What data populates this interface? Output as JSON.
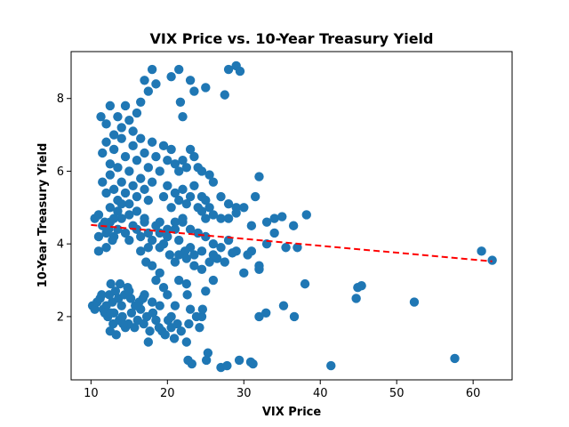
{
  "chart_data": {
    "type": "scatter",
    "title": "VIX Price vs. 10-Year Treasury Yield",
    "xlabel": "VIX Price",
    "ylabel": "10-Year Treasury Yield",
    "xlim": [
      7.4,
      65.1
    ],
    "ylim": [
      0.26,
      9.29
    ],
    "xticks": [
      10,
      20,
      30,
      40,
      50,
      60
    ],
    "yticks": [
      2,
      4,
      6,
      8
    ],
    "grid": false,
    "point_color": "#1f77b4",
    "trend_color": "#ff0000",
    "trendline": {
      "style": "dashed",
      "x": [
        10,
        62.5
      ],
      "y": [
        4.52,
        3.52
      ]
    },
    "series": [
      {
        "values": [
          [
            10.2,
            2.3
          ],
          [
            10.5,
            2.2
          ],
          [
            10.8,
            2.4
          ],
          [
            11.2,
            2.5
          ],
          [
            11.6,
            2.2
          ],
          [
            12.0,
            2.3
          ],
          [
            12.4,
            2.6
          ],
          [
            12.8,
            2.4
          ],
          [
            13.2,
            2.7
          ],
          [
            13.6,
            2.5
          ],
          [
            14.0,
            2.3
          ],
          [
            14.4,
            2.6
          ],
          [
            14.8,
            2.8
          ],
          [
            15.2,
            2.5
          ],
          [
            11.4,
            2.6
          ],
          [
            12.6,
            2.9
          ],
          [
            13.0,
            2.1
          ],
          [
            13.8,
            2.9
          ],
          [
            15.0,
            2.7
          ],
          [
            12.2,
            2.0
          ],
          [
            12.5,
            1.6
          ],
          [
            12.9,
            1.8
          ],
          [
            13.3,
            1.5
          ],
          [
            13.7,
            1.9
          ],
          [
            14.1,
            2.0
          ],
          [
            14.5,
            1.7
          ],
          [
            14.9,
            1.8
          ],
          [
            15.3,
            2.1
          ],
          [
            15.7,
            1.7
          ],
          [
            16.1,
            1.9
          ],
          [
            16.5,
            2.2
          ],
          [
            16.9,
            1.8
          ],
          [
            17.3,
            2.0
          ],
          [
            17.7,
            1.6
          ],
          [
            18.1,
            2.1
          ],
          [
            18.5,
            1.9
          ],
          [
            18.9,
            1.7
          ],
          [
            19.3,
            1.6
          ],
          [
            19.7,
            1.5
          ],
          [
            20.1,
            1.9
          ],
          [
            20.5,
            1.7
          ],
          [
            20.9,
            1.4
          ],
          [
            21.3,
            1.8
          ],
          [
            17.5,
            1.3
          ],
          [
            22.5,
            1.3
          ],
          [
            22.7,
            0.8
          ],
          [
            23.2,
            0.7
          ],
          [
            24.5,
            2.0
          ],
          [
            25.3,
            1.0
          ],
          [
            25.1,
            0.8
          ],
          [
            27.0,
            0.6
          ],
          [
            27.8,
            0.65
          ],
          [
            29.4,
            0.8
          ],
          [
            30.9,
            0.75
          ],
          [
            31.2,
            0.7
          ],
          [
            41.4,
            0.65
          ],
          [
            57.6,
            0.85
          ],
          [
            24.6,
            2.2
          ],
          [
            26.0,
            3.0
          ],
          [
            25.0,
            2.7
          ],
          [
            23.0,
            2.2
          ],
          [
            22.6,
            2.6
          ],
          [
            22.5,
            2.9
          ],
          [
            32.0,
            2.0
          ],
          [
            32.9,
            2.1
          ],
          [
            35.2,
            2.3
          ],
          [
            36.6,
            2.0
          ],
          [
            38.0,
            2.9
          ],
          [
            44.7,
            2.5
          ],
          [
            44.9,
            2.8
          ],
          [
            45.4,
            2.85
          ],
          [
            52.3,
            2.4
          ],
          [
            11.0,
            4.2
          ],
          [
            11.5,
            4.5
          ],
          [
            12.0,
            4.3
          ],
          [
            12.5,
            4.6
          ],
          [
            13.0,
            4.2
          ],
          [
            13.5,
            4.4
          ],
          [
            14.0,
            4.7
          ],
          [
            14.5,
            4.3
          ],
          [
            15.0,
            4.1
          ],
          [
            15.5,
            4.5
          ],
          [
            16.0,
            4.4
          ],
          [
            16.5,
            4.2
          ],
          [
            17.0,
            4.6
          ],
          [
            17.5,
            4.3
          ],
          [
            18.0,
            4.1
          ],
          [
            18.5,
            4.5
          ],
          [
            19.0,
            4.3
          ],
          [
            19.5,
            4.0
          ],
          [
            20.0,
            4.2
          ],
          [
            21.0,
            4.4
          ],
          [
            21.5,
            4.1
          ],
          [
            22.0,
            4.6
          ],
          [
            23.0,
            3.9
          ],
          [
            24.0,
            4.3
          ],
          [
            25.0,
            4.2
          ],
          [
            26.0,
            4.0
          ],
          [
            27.0,
            3.9
          ],
          [
            28.0,
            4.1
          ],
          [
            29.0,
            3.8
          ],
          [
            30.5,
            3.7
          ],
          [
            31.0,
            3.8
          ],
          [
            32.0,
            3.4
          ],
          [
            33.0,
            4.6
          ],
          [
            34.0,
            4.7
          ],
          [
            35.0,
            4.75
          ],
          [
            36.5,
            4.5
          ],
          [
            38.2,
            4.8
          ],
          [
            34.0,
            4.3
          ],
          [
            37.0,
            3.9
          ],
          [
            61.1,
            3.8
          ],
          [
            62.5,
            3.55
          ],
          [
            17.2,
            3.5
          ],
          [
            18.0,
            3.4
          ],
          [
            19.0,
            3.2
          ],
          [
            20.3,
            3.7
          ],
          [
            21.0,
            3.5
          ],
          [
            22.3,
            3.8
          ],
          [
            23.5,
            3.4
          ],
          [
            24.5,
            3.3
          ],
          [
            25.5,
            3.5
          ],
          [
            26.5,
            3.6
          ],
          [
            27.5,
            3.5
          ],
          [
            30.0,
            3.2
          ],
          [
            32.0,
            3.3
          ],
          [
            18.5,
            3.0
          ],
          [
            19.5,
            2.8
          ],
          [
            21.5,
            3.0
          ],
          [
            20.0,
            2.6
          ],
          [
            11.3,
            7.5
          ],
          [
            12.0,
            7.3
          ],
          [
            12.5,
            7.8
          ],
          [
            13.0,
            7.0
          ],
          [
            13.5,
            7.5
          ],
          [
            14.0,
            7.2
          ],
          [
            14.5,
            7.8
          ],
          [
            15.0,
            7.4
          ],
          [
            15.5,
            7.1
          ],
          [
            16.0,
            7.6
          ],
          [
            16.5,
            7.9
          ],
          [
            17.0,
            8.5
          ],
          [
            17.5,
            8.2
          ],
          [
            18.0,
            8.8
          ],
          [
            18.5,
            8.4
          ],
          [
            20.5,
            8.6
          ],
          [
            21.5,
            8.8
          ],
          [
            23.0,
            8.5
          ],
          [
            23.5,
            8.2
          ],
          [
            25.0,
            8.3
          ],
          [
            27.5,
            8.1
          ],
          [
            28.0,
            8.8
          ],
          [
            29.0,
            8.9
          ],
          [
            29.5,
            8.75
          ],
          [
            21.7,
            7.9
          ],
          [
            22.0,
            7.5
          ],
          [
            11.5,
            6.5
          ],
          [
            12.0,
            6.8
          ],
          [
            12.5,
            6.2
          ],
          [
            13.0,
            6.6
          ],
          [
            13.5,
            6.1
          ],
          [
            14.0,
            6.9
          ],
          [
            14.5,
            6.4
          ],
          [
            15.0,
            6.0
          ],
          [
            15.5,
            6.7
          ],
          [
            16.0,
            6.3
          ],
          [
            16.5,
            6.9
          ],
          [
            17.0,
            6.5
          ],
          [
            17.5,
            6.1
          ],
          [
            18.0,
            6.8
          ],
          [
            18.5,
            6.4
          ],
          [
            19.0,
            6.0
          ],
          [
            19.5,
            6.7
          ],
          [
            20.0,
            6.3
          ],
          [
            20.5,
            6.6
          ],
          [
            21.0,
            6.2
          ],
          [
            21.5,
            6.0
          ],
          [
            22.0,
            6.3
          ],
          [
            22.5,
            6.1
          ],
          [
            23.0,
            6.6
          ],
          [
            23.5,
            6.4
          ],
          [
            24.0,
            6.1
          ],
          [
            24.5,
            6.0
          ],
          [
            25.5,
            5.9
          ],
          [
            11.5,
            5.7
          ],
          [
            12.0,
            5.4
          ],
          [
            12.5,
            5.9
          ],
          [
            13.0,
            5.5
          ],
          [
            13.5,
            5.2
          ],
          [
            14.0,
            5.7
          ],
          [
            14.5,
            5.4
          ],
          [
            15.0,
            5.1
          ],
          [
            15.5,
            5.6
          ],
          [
            16.0,
            5.3
          ],
          [
            16.5,
            5.8
          ],
          [
            17.0,
            5.5
          ],
          [
            17.5,
            5.2
          ],
          [
            18.0,
            5.7
          ],
          [
            19.5,
            5.3
          ],
          [
            20.0,
            5.6
          ],
          [
            20.5,
            5.0
          ],
          [
            21.0,
            5.4
          ],
          [
            21.5,
            5.2
          ],
          [
            22.0,
            5.5
          ],
          [
            22.5,
            5.1
          ],
          [
            23.0,
            5.3
          ],
          [
            23.5,
            5.6
          ],
          [
            24.0,
            5.0
          ],
          [
            24.5,
            5.3
          ],
          [
            25.0,
            5.2
          ],
          [
            25.5,
            5.0
          ],
          [
            26.0,
            5.7
          ],
          [
            27.0,
            5.3
          ],
          [
            28.0,
            5.1
          ],
          [
            29.0,
            5.0
          ],
          [
            31.5,
            5.3
          ],
          [
            32.0,
            5.85
          ],
          [
            25.0,
            4.7
          ],
          [
            26.0,
            4.8
          ],
          [
            27.0,
            4.7
          ],
          [
            28.0,
            4.7
          ],
          [
            29.0,
            4.85
          ],
          [
            30.0,
            5.0
          ],
          [
            31.0,
            4.5
          ],
          [
            24.5,
            4.9
          ],
          [
            12.5,
            5.0
          ],
          [
            13.0,
            4.7
          ],
          [
            13.5,
            4.9
          ],
          [
            14.0,
            5.1
          ],
          [
            15.0,
            4.8
          ],
          [
            16.0,
            4.9
          ],
          [
            17.0,
            4.7
          ],
          [
            19.0,
            4.6
          ],
          [
            20.0,
            4.4
          ],
          [
            21.0,
            4.6
          ],
          [
            22.0,
            4.7
          ],
          [
            23.0,
            4.4
          ],
          [
            11.0,
            3.8
          ],
          [
            12.0,
            3.9
          ],
          [
            16.5,
            3.8
          ],
          [
            17.5,
            3.9
          ],
          [
            19.0,
            3.9
          ],
          [
            21.5,
            3.7
          ],
          [
            22.5,
            3.6
          ],
          [
            23.5,
            3.7
          ],
          [
            24.5,
            3.8
          ],
          [
            26.0,
            3.7
          ],
          [
            28.5,
            3.75
          ],
          [
            33.0,
            4.0
          ],
          [
            35.5,
            3.9
          ],
          [
            10.5,
            4.7
          ],
          [
            11.0,
            4.8
          ],
          [
            11.8,
            4.6
          ],
          [
            12.3,
            4.4
          ],
          [
            12.8,
            4.1
          ],
          [
            16.3,
            2.4
          ],
          [
            17.0,
            2.6
          ],
          [
            18.0,
            2.4
          ],
          [
            19.0,
            2.3
          ],
          [
            20.5,
            2.0
          ],
          [
            21.0,
            2.3
          ],
          [
            21.8,
            1.6
          ],
          [
            22.8,
            1.8
          ],
          [
            23.8,
            2.0
          ],
          [
            24.2,
            1.7
          ],
          [
            14.2,
            1.8
          ],
          [
            15.8,
            2.3
          ],
          [
            16.8,
            2.5
          ],
          [
            11.8,
            2.1
          ],
          [
            12.6,
            2.1
          ]
        ]
      }
    ]
  }
}
